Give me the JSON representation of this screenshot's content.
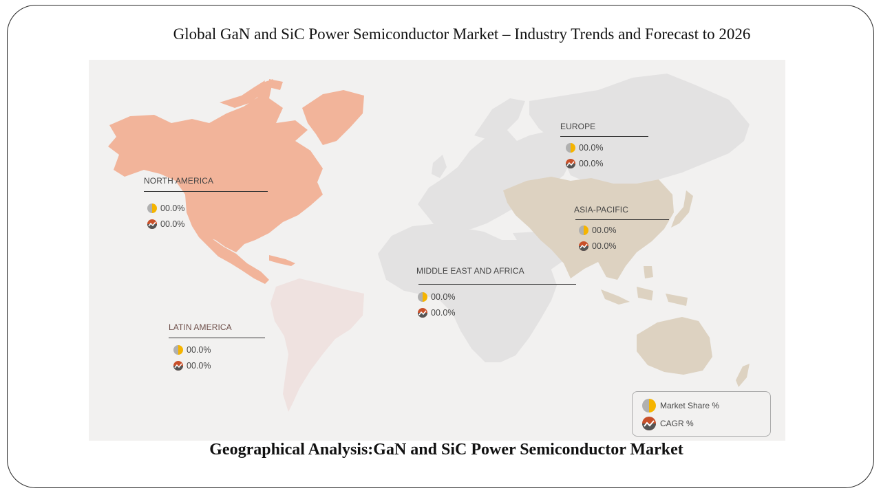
{
  "title": "Global GaN and SiC Power Semiconductor Market – Industry Trends and Forecast to 2026",
  "footer": "Geographical Analysis:GaN and SiC Power Semiconductor Market",
  "colors": {
    "north_america": "#f2b49a",
    "latin_america": "#efe2e0",
    "asia_pacific": "#ddd2c1",
    "other_land": "#e3e2e2",
    "market_share_gold": "#f5b400",
    "market_share_gray": "#b0b0b0",
    "cagr_red": "#c8502a",
    "cagr_dark": "#555555"
  },
  "regions": [
    {
      "id": "north-america",
      "name": "NORTH AMERICA",
      "market_share": "00.0%",
      "cagr": "00.0%"
    },
    {
      "id": "europe",
      "name": "EUROPE",
      "market_share": "00.0%",
      "cagr": "00.0%"
    },
    {
      "id": "asia-pacific",
      "name": "ASIA-PACIFIC",
      "market_share": "00.0%",
      "cagr": "00.0%"
    },
    {
      "id": "middle-east-africa",
      "name": "MIDDLE EAST AND AFRICA",
      "market_share": "00.0%",
      "cagr": "00.0%"
    },
    {
      "id": "latin-america",
      "name": "LATIN AMERICA",
      "market_share": "00.0%",
      "cagr": "00.0%"
    }
  ],
  "legend": {
    "market_share": "Market Share  %",
    "cagr": "CAGR  %",
    "market_share_icon": "pie-icon",
    "cagr_icon": "trend-icon"
  }
}
